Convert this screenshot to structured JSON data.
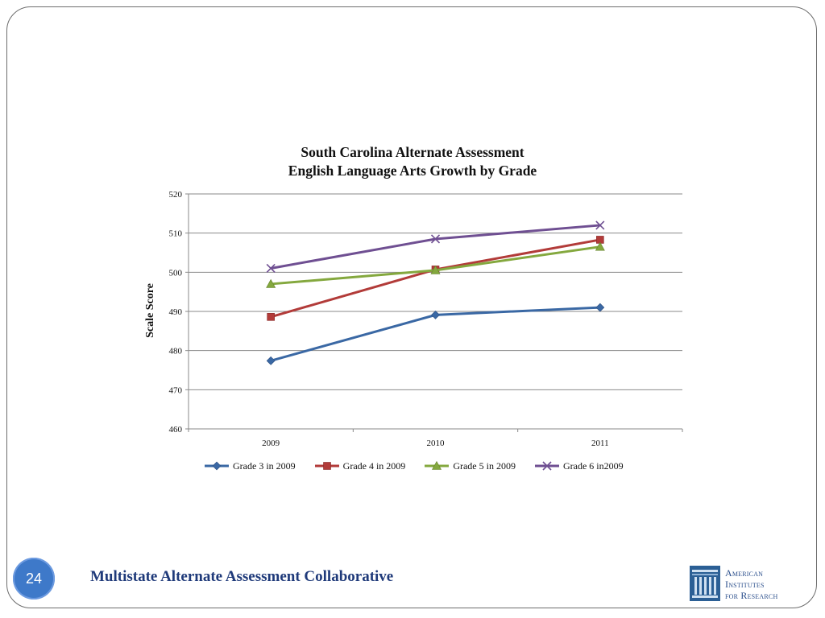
{
  "slide": {
    "page_number": "24",
    "footer_text": "Multistate Alternate Assessment Collaborative",
    "logo": {
      "line1": "American",
      "line2": "Institutes",
      "line3": "for Research"
    }
  },
  "chart_data": {
    "type": "line",
    "title_line1": "South Carolina Alternate Assessment",
    "title_line2": "English Language Arts Growth by Grade",
    "xlabel": "",
    "ylabel": "Scale Score",
    "categories": [
      "2009",
      "2010",
      "2011"
    ],
    "ylim": [
      460,
      520
    ],
    "yticks": [
      460,
      470,
      480,
      490,
      500,
      510,
      520
    ],
    "grid": true,
    "legend_position": "bottom",
    "series": [
      {
        "name": "Grade 3 in 2009",
        "values": [
          477.4,
          489.1,
          491.0
        ],
        "color": "#3a68a4",
        "marker": "diamond"
      },
      {
        "name": "Grade 4 in 2009",
        "values": [
          488.6,
          500.7,
          508.3
        ],
        "color": "#b23b39",
        "marker": "square"
      },
      {
        "name": "Grade 5 in 2009",
        "values": [
          497.0,
          500.5,
          506.5
        ],
        "color": "#84a83e",
        "marker": "triangle"
      },
      {
        "name": "Grade 6 in2009",
        "values": [
          501.0,
          508.5,
          512.0
        ],
        "color": "#6f4f92",
        "marker": "x"
      }
    ]
  }
}
